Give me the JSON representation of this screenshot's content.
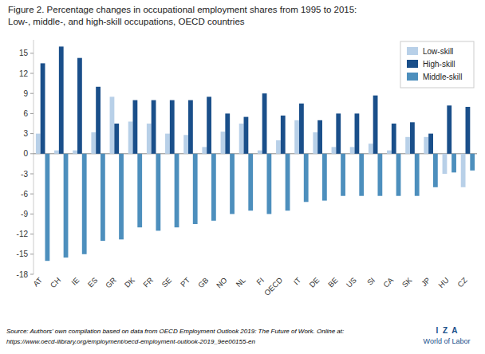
{
  "chart_data": {
    "type": "bar",
    "title": "Figure 2. Percentage changes  in occupational employment shares from 1995 to 2015:",
    "subtitle": "Low-, middle-, and high-skill occupations, OECD countries",
    "categories": [
      "AT",
      "CH",
      "IE",
      "ES",
      "GR",
      "DK",
      "FR",
      "SE",
      "PT",
      "GB",
      "NO",
      "NL",
      "FI",
      "OECD",
      "IT",
      "DE",
      "BE",
      "US",
      "SI",
      "CA",
      "SK",
      "JP",
      "HU",
      "CZ"
    ],
    "series": [
      {
        "name": "Low-skill",
        "color": "#b8d0e8",
        "values": [
          3.0,
          0.5,
          0.5,
          3.2,
          8.5,
          4.8,
          4.5,
          3.0,
          2.8,
          1.0,
          3.3,
          4.5,
          0.5,
          2.0,
          5.0,
          3.2,
          1.0,
          1.0,
          1.5,
          0.5,
          2.5,
          2.5,
          -3.0,
          -5.0
        ]
      },
      {
        "name": "High-skill",
        "color": "#1a4f8a",
        "values": [
          13.5,
          16.0,
          14.3,
          10.0,
          4.5,
          8.0,
          8.0,
          8.0,
          8.0,
          8.5,
          6.0,
          5.5,
          9.0,
          5.7,
          7.5,
          5.0,
          6.0,
          6.0,
          8.7,
          4.5,
          4.7,
          3.0,
          7.2,
          7.0
        ]
      },
      {
        "name": "Middle-skill",
        "color": "#4d8fbd",
        "values": [
          -16.0,
          -15.5,
          -15.0,
          -13.0,
          -12.8,
          -11.0,
          -11.5,
          -11.0,
          -10.5,
          -10.0,
          -9.0,
          -8.5,
          -9.0,
          -8.5,
          -7.2,
          -7.0,
          -6.3,
          -6.3,
          -6.3,
          -6.3,
          -6.3,
          -5.0,
          -2.8,
          -2.5
        ]
      }
    ],
    "ylim": [
      -18,
      17
    ],
    "yticks": [
      -18,
      -15,
      -12,
      -9,
      -6,
      -3,
      0,
      3,
      6,
      9,
      12,
      15
    ],
    "grid": false,
    "legend": "upper right",
    "annotations": [
      "Source: Authors' own compilation based on data from OECD Employment Outlook 2019: The Future of Work. Online at:",
      "https://www.oecd-ilibrary.org/employment/oecd-employment-outlook-2019_9ee00155-en",
      "I  Z  A",
      "World of Labor"
    ]
  }
}
